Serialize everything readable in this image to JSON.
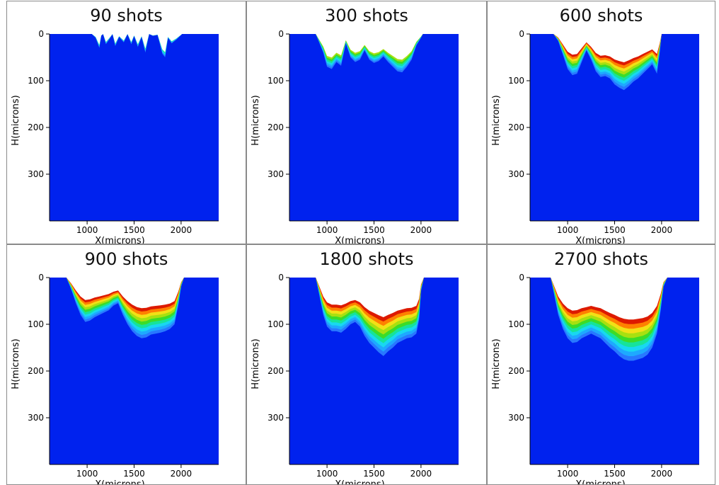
{
  "colors": {
    "background_material": "#0022ee",
    "contour_levels": [
      "#2878ff",
      "#1ea9ff",
      "#18d8f0",
      "#16e39a",
      "#3cdc28",
      "#a8e010",
      "#f2e016",
      "#ff8000",
      "#dd1a00"
    ]
  },
  "chart_data": [
    {
      "type": "area",
      "title": "90 shots",
      "xlabel": "X(microns)",
      "ylabel": "H(microns)",
      "xlim": [
        600,
        2400
      ],
      "ylim": [
        0,
        400
      ],
      "y_inverted": true,
      "xticks": [
        1000,
        1500,
        2000
      ],
      "yticks": [
        0,
        100,
        200,
        300
      ],
      "crater_profile": {
        "x": [
          1050,
          1090,
          1130,
          1150,
          1170,
          1200,
          1240,
          1270,
          1300,
          1340,
          1390,
          1430,
          1470,
          1500,
          1540,
          1580,
          1620,
          1660,
          1700,
          1750,
          1800,
          1830,
          1860,
          1900,
          1950,
          1990,
          2010
        ],
        "depth": [
          0,
          8,
          30,
          4,
          0,
          22,
          10,
          0,
          26,
          6,
          18,
          0,
          22,
          4,
          28,
          6,
          40,
          0,
          4,
          2,
          42,
          50,
          8,
          20,
          12,
          4,
          0
        ]
      },
      "max_level_index": 3
    },
    {
      "type": "area",
      "title": "300 shots",
      "xlabel": "X(microns)",
      "ylabel": "H(microns)",
      "xlim": [
        600,
        2400
      ],
      "ylim": [
        0,
        400
      ],
      "y_inverted": true,
      "xticks": [
        1000,
        1500,
        2000
      ],
      "yticks": [
        0,
        100,
        200,
        300
      ],
      "crater_profile": {
        "x": [
          880,
          920,
          960,
          1000,
          1050,
          1100,
          1150,
          1200,
          1250,
          1300,
          1350,
          1400,
          1450,
          1500,
          1550,
          1600,
          1650,
          1700,
          1750,
          1800,
          1850,
          1900,
          1950,
          2000,
          2020
        ],
        "depth": [
          0,
          20,
          40,
          70,
          75,
          60,
          68,
          20,
          50,
          60,
          55,
          35,
          55,
          62,
          58,
          48,
          60,
          70,
          80,
          82,
          70,
          55,
          25,
          8,
          0
        ]
      },
      "max_level_index": 5
    },
    {
      "type": "area",
      "title": "600 shots",
      "xlabel": "X(microns)",
      "ylabel": "H(microns)",
      "xlim": [
        600,
        2400
      ],
      "ylim": [
        0,
        400
      ],
      "y_inverted": true,
      "xticks": [
        1000,
        1500,
        2000
      ],
      "yticks": [
        0,
        100,
        200,
        300
      ],
      "crater_profile": {
        "x": [
          850,
          900,
          950,
          1000,
          1050,
          1100,
          1150,
          1200,
          1250,
          1300,
          1350,
          1400,
          1450,
          1500,
          1550,
          1600,
          1650,
          1700,
          1750,
          1800,
          1850,
          1900,
          1950,
          1980,
          2000
        ],
        "depth": [
          0,
          15,
          45,
          75,
          88,
          85,
          60,
          35,
          55,
          80,
          92,
          90,
          95,
          108,
          115,
          120,
          112,
          102,
          95,
          85,
          75,
          65,
          85,
          40,
          0
        ]
      },
      "max_level_index": 8
    },
    {
      "type": "area",
      "title": "900 shots",
      "xlabel": "X(microns)",
      "ylabel": "H(microns)",
      "xlim": [
        600,
        2400
      ],
      "ylim": [
        0,
        400
      ],
      "y_inverted": true,
      "xticks": [
        1000,
        1500,
        2000
      ],
      "yticks": [
        0,
        100,
        200,
        300
      ],
      "crater_profile": {
        "x": [
          780,
          830,
          880,
          930,
          980,
          1030,
          1080,
          1130,
          1180,
          1230,
          1280,
          1330,
          1380,
          1430,
          1480,
          1530,
          1580,
          1630,
          1680,
          1730,
          1780,
          1830,
          1880,
          1930,
          1970,
          2000,
          2030
        ],
        "depth": [
          0,
          25,
          55,
          80,
          95,
          92,
          85,
          80,
          75,
          70,
          60,
          55,
          80,
          100,
          115,
          125,
          130,
          128,
          122,
          120,
          118,
          115,
          110,
          100,
          60,
          20,
          0
        ]
      },
      "max_level_index": 8
    },
    {
      "type": "area",
      "title": "1800 shots",
      "xlabel": "X(microns)",
      "ylabel": "H(microns)",
      "xlim": [
        600,
        2400
      ],
      "ylim": [
        0,
        400
      ],
      "y_inverted": true,
      "xticks": [
        1000,
        1500,
        2000
      ],
      "yticks": [
        0,
        100,
        200,
        300
      ],
      "crater_profile": {
        "x": [
          880,
          920,
          960,
          1000,
          1050,
          1100,
          1150,
          1200,
          1250,
          1300,
          1350,
          1400,
          1450,
          1500,
          1550,
          1600,
          1650,
          1700,
          1750,
          1800,
          1850,
          1900,
          1950,
          1980,
          2000,
          2030
        ],
        "depth": [
          0,
          40,
          80,
          105,
          115,
          115,
          118,
          110,
          100,
          95,
          105,
          125,
          140,
          150,
          160,
          168,
          158,
          150,
          140,
          135,
          130,
          128,
          120,
          90,
          30,
          0
        ]
      },
      "max_level_index": 8
    },
    {
      "type": "area",
      "title": "2700 shots",
      "xlabel": "X(microns)",
      "ylabel": "H(microns)",
      "xlim": [
        600,
        2400
      ],
      "ylim": [
        0,
        400
      ],
      "y_inverted": true,
      "xticks": [
        1000,
        1500,
        2000
      ],
      "yticks": [
        0,
        100,
        200,
        300
      ],
      "crater_profile": {
        "x": [
          820,
          860,
          900,
          950,
          1000,
          1050,
          1100,
          1150,
          1200,
          1250,
          1300,
          1350,
          1400,
          1450,
          1500,
          1550,
          1600,
          1650,
          1700,
          1750,
          1800,
          1850,
          1900,
          1950,
          1990,
          2020,
          2060
        ],
        "depth": [
          0,
          40,
          80,
          110,
          130,
          140,
          138,
          130,
          125,
          120,
          125,
          130,
          140,
          150,
          158,
          168,
          175,
          178,
          178,
          175,
          172,
          165,
          150,
          120,
          70,
          20,
          0
        ]
      },
      "max_level_index": 8
    }
  ]
}
